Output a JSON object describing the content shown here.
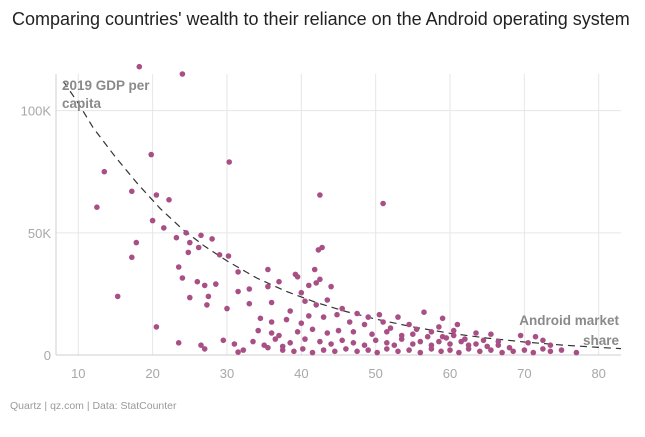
{
  "header": {
    "title": "Comparing countries' wealth to their reliance on the Android operating system"
  },
  "footer": {
    "source": "Quartz | qz.com | Data: StatCounter"
  },
  "colors": {
    "point": "#a84f86",
    "grid": "#e6e6e6",
    "axis": "#cfcfcf",
    "trend": "#333333"
  },
  "chart_data": {
    "type": "scatter",
    "title": "Comparing countries' wealth to their reliance on the Android operating system",
    "xlabel": "Android market share",
    "ylabel": "2019 GDP per capita",
    "xlim": [
      7,
      83
    ],
    "ylim": [
      0,
      115000
    ],
    "x_ticks": [
      10,
      20,
      30,
      40,
      50,
      60,
      70,
      80
    ],
    "x_tick_labels": [
      "10",
      "20",
      "30",
      "40",
      "50",
      "60",
      "70",
      "80"
    ],
    "y_ticks": [
      0,
      50000,
      100000
    ],
    "y_tick_labels": [
      "0",
      "50K",
      "100K"
    ],
    "grid": true,
    "annotations": {
      "y_axis_label_line1": "2019 GDP per",
      "y_axis_label_line2": "capita",
      "x_axis_label_line1": "Android market",
      "x_axis_label_line2": "share"
    },
    "trendline": {
      "style": "dashed",
      "x": [
        8,
        10,
        12,
        15,
        18,
        21,
        24,
        27,
        30,
        34,
        38,
        42,
        46,
        50,
        55,
        60,
        65,
        70,
        75,
        80,
        83
      ],
      "y": [
        112000,
        103000,
        93000,
        81000,
        70000,
        60000,
        51500,
        44500,
        38500,
        31500,
        26000,
        21500,
        17800,
        14700,
        11500,
        8900,
        6900,
        5300,
        4100,
        3100,
        2600
      ]
    },
    "series": [
      {
        "name": "Countries",
        "points": [
          [
            18.2,
            118000
          ],
          [
            24.0,
            115000
          ],
          [
            30.3,
            79000
          ],
          [
            19.8,
            82000
          ],
          [
            13.5,
            75000
          ],
          [
            17.2,
            67000
          ],
          [
            20.5,
            65500
          ],
          [
            22.2,
            63500
          ],
          [
            42.5,
            65500
          ],
          [
            51.0,
            62000
          ],
          [
            12.5,
            60500
          ],
          [
            20.0,
            55000
          ],
          [
            21.5,
            52000
          ],
          [
            24.5,
            50000
          ],
          [
            23.2,
            48000
          ],
          [
            26.5,
            49000
          ],
          [
            25.0,
            46000
          ],
          [
            28.0,
            47500
          ],
          [
            17.8,
            46000
          ],
          [
            26.2,
            44000
          ],
          [
            42.8,
            44000
          ],
          [
            42.3,
            43000
          ],
          [
            17.2,
            40000
          ],
          [
            24.8,
            42000
          ],
          [
            29.0,
            41000
          ],
          [
            30.2,
            40500
          ],
          [
            23.5,
            36000
          ],
          [
            35.5,
            35000
          ],
          [
            31.5,
            34000
          ],
          [
            39.2,
            33000
          ],
          [
            41.8,
            35000
          ],
          [
            42.5,
            31000
          ],
          [
            39.5,
            32000
          ],
          [
            37.0,
            30000
          ],
          [
            24.0,
            31500
          ],
          [
            26.0,
            30000
          ],
          [
            27.0,
            28500
          ],
          [
            28.5,
            29000
          ],
          [
            33.0,
            27000
          ],
          [
            35.5,
            28000
          ],
          [
            41.0,
            28500
          ],
          [
            42.0,
            29500
          ],
          [
            44.0,
            28000
          ],
          [
            40.0,
            25500
          ],
          [
            31.5,
            26000
          ],
          [
            15.3,
            24000
          ],
          [
            25.0,
            23500
          ],
          [
            27.5,
            24000
          ],
          [
            27.3,
            20500
          ],
          [
            33.0,
            21000
          ],
          [
            36.0,
            21500
          ],
          [
            40.5,
            22000
          ],
          [
            42.0,
            20500
          ],
          [
            43.5,
            22500
          ],
          [
            45.5,
            19000
          ],
          [
            38.5,
            18000
          ],
          [
            41.0,
            16000
          ],
          [
            43.0,
            15500
          ],
          [
            44.8,
            16500
          ],
          [
            47.5,
            17000
          ],
          [
            49.0,
            15500
          ],
          [
            50.5,
            16500
          ],
          [
            53.0,
            15500
          ],
          [
            56.5,
            17500
          ],
          [
            59.0,
            15000
          ],
          [
            30.0,
            19000
          ],
          [
            34.5,
            15000
          ],
          [
            36.0,
            13500
          ],
          [
            38.0,
            14500
          ],
          [
            40.0,
            13000
          ],
          [
            46.5,
            13500
          ],
          [
            48.5,
            12500
          ],
          [
            51.0,
            13500
          ],
          [
            52.0,
            11000
          ],
          [
            54.5,
            12500
          ],
          [
            55.5,
            10500
          ],
          [
            57.5,
            9500
          ],
          [
            58.5,
            11500
          ],
          [
            60.5,
            10000
          ],
          [
            61.0,
            12500
          ],
          [
            63.5,
            9000
          ],
          [
            65.5,
            8500
          ],
          [
            69.5,
            8000
          ],
          [
            71.5,
            7500
          ],
          [
            72.5,
            6000
          ],
          [
            20.5,
            11500
          ],
          [
            34.2,
            10000
          ],
          [
            36.0,
            9000
          ],
          [
            37.0,
            8000
          ],
          [
            39.5,
            9500
          ],
          [
            41.5,
            10500
          ],
          [
            43.5,
            9000
          ],
          [
            45.0,
            10000
          ],
          [
            47.0,
            9500
          ],
          [
            49.5,
            8500
          ],
          [
            51.5,
            9500
          ],
          [
            53.5,
            8000
          ],
          [
            55.0,
            8500
          ],
          [
            57.0,
            7500
          ],
          [
            59.5,
            7000
          ],
          [
            62.0,
            6500
          ],
          [
            64.5,
            6000
          ],
          [
            66.5,
            5500
          ],
          [
            70.5,
            5000
          ],
          [
            73.5,
            4000
          ],
          [
            23.5,
            5000
          ],
          [
            26.5,
            4000
          ],
          [
            29.5,
            6000
          ],
          [
            31.0,
            4500
          ],
          [
            33.5,
            5500
          ],
          [
            35.0,
            4000
          ],
          [
            36.5,
            6500
          ],
          [
            37.5,
            3500
          ],
          [
            38.5,
            5000
          ],
          [
            40.5,
            6500
          ],
          [
            42.5,
            5500
          ],
          [
            44.0,
            4500
          ],
          [
            45.5,
            6000
          ],
          [
            47.0,
            5000
          ],
          [
            48.5,
            4000
          ],
          [
            50.0,
            6000
          ],
          [
            51.5,
            5000
          ],
          [
            52.5,
            4000
          ],
          [
            53.5,
            6500
          ],
          [
            55.0,
            4500
          ],
          [
            56.0,
            5500
          ],
          [
            57.5,
            4000
          ],
          [
            58.5,
            5500
          ],
          [
            60.0,
            4500
          ],
          [
            61.5,
            5500
          ],
          [
            62.5,
            4000
          ],
          [
            63.5,
            4500
          ],
          [
            65.0,
            3500
          ],
          [
            66.5,
            4000
          ],
          [
            68.0,
            3000
          ],
          [
            27.0,
            2500
          ],
          [
            31.5,
            1200
          ],
          [
            32.2,
            2000
          ],
          [
            35.5,
            3000
          ],
          [
            37.5,
            2000
          ],
          [
            39.0,
            1500
          ],
          [
            40.2,
            2500
          ],
          [
            41.5,
            1000
          ],
          [
            43.0,
            2000
          ],
          [
            44.5,
            1500
          ],
          [
            46.0,
            2500
          ],
          [
            47.5,
            1500
          ],
          [
            49.0,
            2000
          ],
          [
            50.2,
            1000
          ],
          [
            51.5,
            2500
          ],
          [
            53.0,
            1500
          ],
          [
            54.5,
            2000
          ],
          [
            56.0,
            1000
          ],
          [
            57.5,
            2500
          ],
          [
            58.8,
            1500
          ],
          [
            60.0,
            2000
          ],
          [
            61.2,
            1000
          ],
          [
            62.5,
            2500
          ],
          [
            64.0,
            1500
          ],
          [
            65.5,
            2000
          ],
          [
            67.0,
            1000
          ],
          [
            68.5,
            1500
          ],
          [
            70.0,
            2000
          ],
          [
            71.2,
            1000
          ],
          [
            72.5,
            2500
          ],
          [
            73.5,
            1500
          ],
          [
            75.0,
            2000
          ],
          [
            77.0,
            1000
          ],
          [
            59.0,
            7500
          ],
          [
            60.5,
            8000
          ]
        ]
      }
    ]
  }
}
